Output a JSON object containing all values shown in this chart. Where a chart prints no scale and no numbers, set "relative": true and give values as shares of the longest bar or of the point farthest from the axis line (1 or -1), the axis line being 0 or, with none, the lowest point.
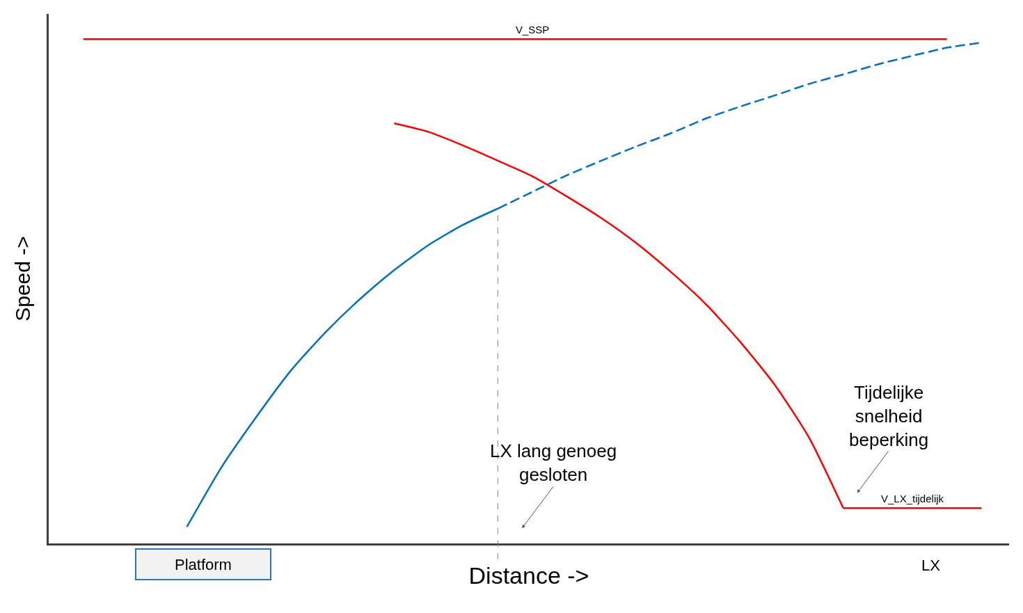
{
  "chart_data": {
    "type": "line",
    "relative": true,
    "xlabel": "Distance ->",
    "ylabel": "Speed ->",
    "categories": [
      null,
      null,
      null,
      null,
      null,
      null,
      null,
      null,
      null,
      null,
      null,
      null,
      null,
      null,
      null,
      null,
      null,
      null,
      null,
      null,
      null,
      null,
      null,
      null,
      null,
      null,
      null,
      null
    ],
    "series": [
      {
        "name": "V_SSP",
        "color": "#ff0000",
        "values": [
          null,
          1,
          1,
          1,
          1,
          1,
          1,
          1,
          1,
          1,
          1,
          1,
          1,
          1,
          1,
          1,
          1,
          1,
          1,
          1,
          1,
          1,
          1,
          1,
          1,
          1,
          1,
          null
        ]
      },
      {
        "color": "#0070c0",
        "values": [
          null,
          null,
          null,
          null,
          0.033,
          0.151,
          0.25,
          0.342,
          0.418,
          0.484,
          0.542,
          0.592,
          0.632,
          0.664,
          null,
          null,
          null,
          null,
          null,
          null,
          null,
          null,
          null,
          null,
          null,
          null,
          null,
          null
        ]
      },
      {
        "color": "#0070c0",
        "line_style": "dashed",
        "values": [
          null,
          null,
          null,
          null,
          null,
          null,
          null,
          null,
          null,
          null,
          null,
          null,
          null,
          0.664,
          0.697,
          0.73,
          0.759,
          0.787,
          0.813,
          0.842,
          0.866,
          0.888,
          0.911,
          0.93,
          0.95,
          0.967,
          0.983,
          0.993
        ]
      },
      {
        "color": "#ff0000",
        "values": [
          null,
          null,
          null,
          null,
          null,
          null,
          null,
          null,
          null,
          null,
          0.833,
          0.816,
          0.789,
          0.759,
          0.728,
          0.688,
          0.645,
          0.596,
          0.539,
          0.476,
          0.401,
          0.316,
          0.211,
          0.07,
          null,
          null,
          null,
          null
        ]
      },
      {
        "name": "V_LX_tijdelijk",
        "color": "#ff0000",
        "values": [
          null,
          null,
          null,
          null,
          null,
          null,
          null,
          null,
          null,
          null,
          null,
          null,
          null,
          null,
          null,
          null,
          null,
          null,
          null,
          null,
          null,
          null,
          null,
          0.07,
          0.07,
          0.07,
          0.07,
          0.07
        ]
      }
    ],
    "annotations": [
      "LX lang genoeg gesloten",
      "Tijdelijke snelheid beperking",
      "Platform",
      "LX"
    ],
    "legend": false
  }
}
